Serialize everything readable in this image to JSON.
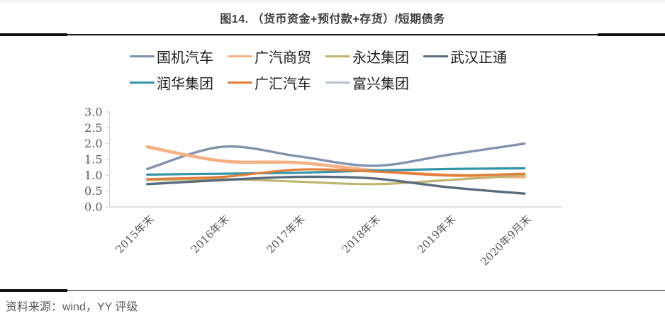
{
  "header": {
    "title": "图14.  （货币资金+预付款+存货）/短期债务"
  },
  "chart_data": {
    "type": "line",
    "title": "（货币资金+预付款+存货）/短期债务",
    "categories": [
      "2015年末",
      "2016年末",
      "2017年末",
      "2018年末",
      "2019年末",
      "2020年9月末"
    ],
    "series": [
      {
        "name": "国机汽车",
        "color": "#8193AC",
        "values": [
          1.2,
          1.9,
          1.6,
          1.3,
          1.65,
          2.0
        ]
      },
      {
        "name": "广汽商贸",
        "color": "#F5B183",
        "values": [
          1.9,
          1.45,
          1.4,
          1.15,
          1.0,
          0.95
        ]
      },
      {
        "name": "永达集团",
        "color": "#C0B56F",
        "values": [
          0.85,
          0.88,
          0.8,
          0.72,
          0.85,
          1.0
        ]
      },
      {
        "name": "武汉正通",
        "color": "#5A6B7E",
        "values": [
          0.72,
          0.85,
          0.95,
          0.9,
          0.62,
          0.42
        ]
      },
      {
        "name": "润华集团",
        "color": "#3595A8",
        "values": [
          1.02,
          1.05,
          1.08,
          1.15,
          1.2,
          1.22
        ]
      },
      {
        "name": "广汇汽车",
        "color": "#E07E3C",
        "values": [
          0.88,
          0.95,
          1.18,
          1.12,
          1.0,
          1.05
        ]
      },
      {
        "name": "富兴集团",
        "color": "#B5C1D1",
        "values": [
          null,
          null,
          null,
          null,
          null,
          null
        ]
      }
    ],
    "yticks": [
      "0.0",
      "0.5",
      "1.0",
      "1.5",
      "2.0",
      "2.5",
      "3.0"
    ],
    "ylim": [
      0,
      3
    ],
    "xlabel": "",
    "ylabel": "",
    "legend_position": "top",
    "grid": false,
    "axis_color": "#D9D9D9",
    "smooth_lines": true
  },
  "footer": {
    "source": "资料来源：wind，YY 评级"
  }
}
